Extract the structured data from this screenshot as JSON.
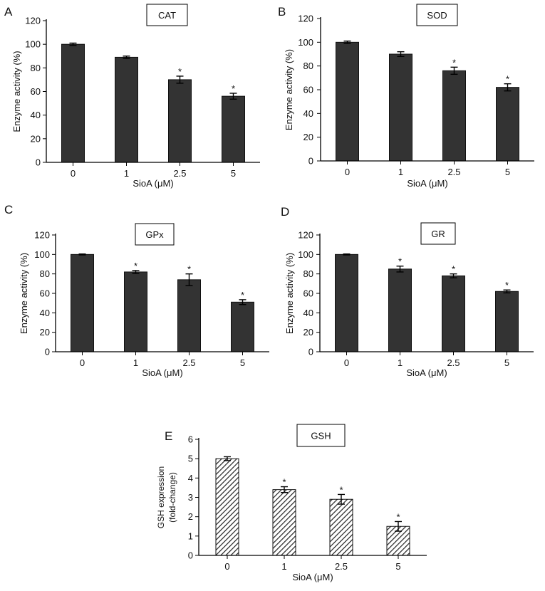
{
  "colors": {
    "bar_fill": "#333333",
    "axis": "#000000",
    "background": "#ffffff"
  },
  "chart_data": [
    {
      "panel": "A",
      "type": "bar",
      "title": "CAT",
      "xlabel": "SioA (μM)",
      "ylabel": "Enzyme activity (%)",
      "categories": [
        "0",
        "1",
        "2.5",
        "5"
      ],
      "values": [
        100,
        89,
        70,
        56
      ],
      "errors": [
        1,
        1,
        3,
        2.5
      ],
      "significant": [
        false,
        false,
        true,
        true
      ],
      "ylim": [
        0,
        120
      ],
      "yticks": [
        0,
        20,
        40,
        60,
        80,
        100,
        120
      ],
      "pattern": "solid"
    },
    {
      "panel": "B",
      "type": "bar",
      "title": "SOD",
      "xlabel": "SioA (μM)",
      "ylabel": "Enzyme activity (%)",
      "categories": [
        "0",
        "1",
        "2.5",
        "5"
      ],
      "values": [
        100,
        90,
        76,
        62
      ],
      "errors": [
        1,
        2,
        3,
        3
      ],
      "significant": [
        false,
        false,
        true,
        true
      ],
      "ylim": [
        0,
        120
      ],
      "yticks": [
        0,
        20,
        40,
        60,
        80,
        100,
        120
      ],
      "pattern": "solid"
    },
    {
      "panel": "C",
      "type": "bar",
      "title": "GPx",
      "xlabel": "SioA (μM)",
      "ylabel": "Enzyme activity (%)",
      "categories": [
        "0",
        "1",
        "2.5",
        "5"
      ],
      "values": [
        100,
        82,
        74,
        51
      ],
      "errors": [
        0.5,
        1.5,
        6,
        2.5
      ],
      "significant": [
        false,
        true,
        true,
        true
      ],
      "ylim": [
        0,
        120
      ],
      "yticks": [
        0,
        20,
        40,
        60,
        80,
        100,
        120
      ],
      "pattern": "solid"
    },
    {
      "panel": "D",
      "type": "bar",
      "title": "GR",
      "xlabel": "SioA (μM)",
      "ylabel": "Enzyme activity (%)",
      "categories": [
        "0",
        "1",
        "2.5",
        "5"
      ],
      "values": [
        100,
        85,
        78,
        62
      ],
      "errors": [
        0.5,
        3,
        2,
        1.5
      ],
      "significant": [
        false,
        true,
        true,
        true
      ],
      "ylim": [
        0,
        120
      ],
      "yticks": [
        0,
        20,
        40,
        60,
        80,
        100,
        120
      ],
      "pattern": "solid"
    },
    {
      "panel": "E",
      "type": "bar",
      "title": "GSH",
      "xlabel": "SioA (μM)",
      "ylabel": "GSH expression (fold-change)",
      "ylabel_lines": [
        "GSH expression",
        "(fold-change)"
      ],
      "categories": [
        "0",
        "1",
        "2.5",
        "5"
      ],
      "values": [
        5,
        3.4,
        2.9,
        1.5
      ],
      "errors": [
        0.1,
        0.15,
        0.25,
        0.25
      ],
      "significant": [
        false,
        true,
        true,
        true
      ],
      "ylim": [
        0,
        6
      ],
      "yticks": [
        0,
        1,
        2,
        3,
        4,
        5,
        6
      ],
      "pattern": "hatched"
    }
  ]
}
